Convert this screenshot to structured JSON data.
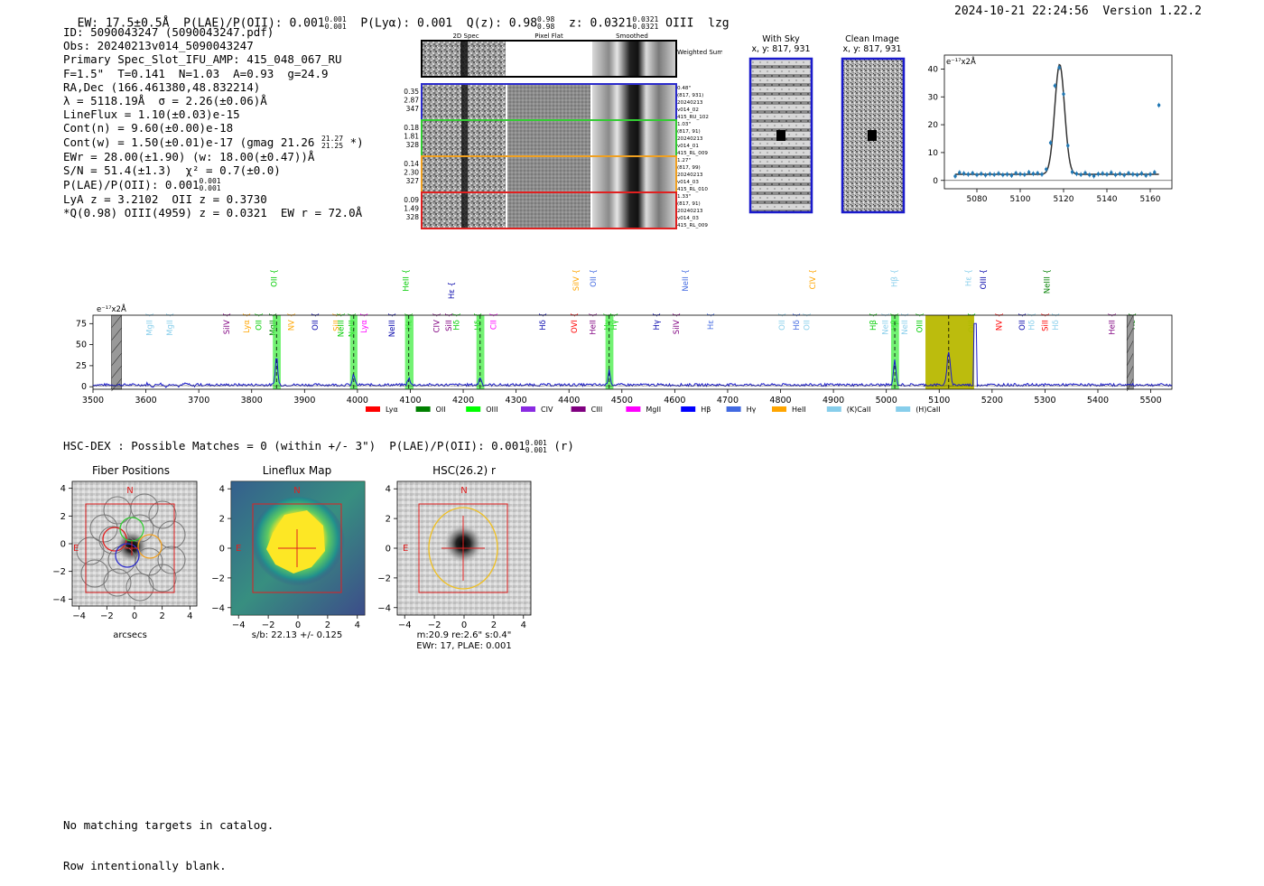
{
  "header": {
    "ew": "EW: 17.5±0.5Å",
    "plae_label": "P(LAE)/P(OII): 0.001",
    "plae_hi": "0.001",
    "plae_lo": "0.001",
    "plya": "P(Lyα): 0.001",
    "qz_label": "Q(z): 0.98",
    "qz_hi": "0.98",
    "qz_lo": "0.98",
    "z_label": "z: 0.0321",
    "z_hi": "0.0321",
    "z_lo": "0.0321",
    "line_name": "OIII",
    "flag": "lzg",
    "timestamp": "2024-10-21 22:24:56",
    "version": "Version 1.22.2"
  },
  "info": {
    "id": "ID: 5090043247 (5090043247.pdf)",
    "obs": "Obs: 20240213v014_5090043247",
    "primary": "Primary Spec_Slot_IFU_AMP: 415_048_067_RU",
    "fiber": "F=1.5\"  T=0.141  N=1.03  A=0.93  g=24.9",
    "radec": "RA,Dec (166.461380,48.832214)",
    "lambda": "λ = 5118.19Å  σ = 2.26(±0.06)Å",
    "lineflux": "LineFlux = 1.10(±0.03)e-15",
    "contn": "Cont(n) = 9.60(±0.00)e-18",
    "contw": "Cont(w) = 1.50(±0.01)e-17 (gmag 21.26",
    "contw_hi": "21.27",
    "contw_lo": "21.25",
    "contw_end": "*)",
    "ewr": "EWr = 28.00(±1.90) (w: 18.00(±0.47))Å",
    "sn": "S/N = 51.4(±1.3)  χ² = 0.7(±0.0)",
    "plae": "P(LAE)/P(OII): 0.001",
    "plae_hi": "0.001",
    "plae_lo": "0.001",
    "lya": "LyA z = 3.2102  OII z = 0.3730",
    "q": "*Q(0.98) OIII(4959) z = 0.0321  EW r = 72.0Å"
  },
  "cutouts": {
    "col_titles": [
      "2D Spec",
      "Pixel Flat",
      "Smoothed"
    ],
    "weighted_sum": "Weighted Sum",
    "rows": [
      {
        "nums": [
          "0.35",
          "2.87",
          "347"
        ],
        "meta": [
          "0.48\"",
          "(817, 931)",
          "20240213",
          "v014_02",
          "415_RU_102"
        ],
        "color": "#2b2bcc"
      },
      {
        "nums": [
          "0.18",
          "1.81",
          "328"
        ],
        "meta": [
          "1.03\"",
          "(817, 91)",
          "20240213",
          "v014_01",
          "415_RL_009"
        ],
        "color": "#33cc33"
      },
      {
        "nums": [
          "0.14",
          "2.30",
          "327"
        ],
        "meta": [
          "1.27\"",
          "(817, 99)",
          "20240213",
          "v014_03",
          "415_RL_010"
        ],
        "color": "#f0a020"
      },
      {
        "nums": [
          "0.09",
          "1.49",
          "328"
        ],
        "meta": [
          "1.33\"",
          "(817, 91)",
          "20240213",
          "v014_03",
          "415_RL_009"
        ],
        "color": "#e02020"
      }
    ],
    "with_sky_title": "With Sky",
    "with_sky_xy": "x, y: 817, 931",
    "clean_title": "Clean Image",
    "clean_xy": "x, y: 817, 931"
  },
  "line_fit_chart": {
    "ylabel": "e⁻¹⁷x2Å",
    "x_ticks": [
      "5080",
      "5100",
      "5120",
      "5140",
      "5160"
    ],
    "y_ticks": [
      "0",
      "10",
      "20",
      "30",
      "40"
    ]
  },
  "spectrum": {
    "ylabel": "e⁻¹⁷x2Å",
    "x_ticks": [
      "3500",
      "3600",
      "3700",
      "3800",
      "3900",
      "4000",
      "4100",
      "4200",
      "4300",
      "4400",
      "4500",
      "4600",
      "4700",
      "4800",
      "4900",
      "5000",
      "5100",
      "5200",
      "5300",
      "5400",
      "5500"
    ],
    "y_ticks": [
      "0",
      "25",
      "50",
      "75"
    ],
    "legend": [
      {
        "name": "Lyα",
        "color": "#ff0000"
      },
      {
        "name": "OII",
        "color": "#008000"
      },
      {
        "name": "OIII",
        "color": "#00ff00"
      },
      {
        "name": "CIV",
        "color": "#8a2be2"
      },
      {
        "name": "CIII",
        "color": "#800080"
      },
      {
        "name": "MgII",
        "color": "#ff00ff"
      },
      {
        "name": "Hβ",
        "color": "#0000ff"
      },
      {
        "name": "Hγ",
        "color": "#4169e1"
      },
      {
        "name": "HeII",
        "color": "#ffa500"
      },
      {
        "name": "(K)CaII",
        "color": "#87ceeb"
      },
      {
        "name": "(H)CaII",
        "color": "#87ceeb"
      }
    ]
  },
  "hsc": {
    "title": "HSC-DEX : Possible Matches = 0 (within +/- 3\")  P(LAE)/P(OII): 0.001",
    "hi": "0.001",
    "lo": "0.001",
    "band": "(r)",
    "panel1_title": "Fiber Positions",
    "panel1_xlabel": "arcsecs",
    "panel2_title": "Lineflux Map",
    "panel2_xlabel": "s/b: 22.13 +/- 0.125",
    "panel3_title": "HSC(26.2) r",
    "panel3_xlabel1": "m:20.9  re:2.6\"  s:0.4\"",
    "panel3_xlabel2": "EWr: 17, PLAE: 0.001",
    "compass_n": "N",
    "compass_e": "E",
    "ticks": [
      "−4",
      "−2",
      "0",
      "2",
      "4"
    ]
  },
  "footer": {
    "line1": "No matching targets in catalog.",
    "line2": "Row intentionally blank."
  },
  "chart_data": [
    {
      "type": "scatter",
      "title": "Line fit",
      "xlabel": "",
      "ylabel": "e⁻¹⁷x2Å",
      "xlim": [
        5065,
        5170
      ],
      "ylim": [
        -3,
        45
      ],
      "x": [
        5070,
        5072,
        5074,
        5076,
        5078,
        5080,
        5082,
        5084,
        5086,
        5088,
        5090,
        5092,
        5094,
        5096,
        5098,
        5100,
        5102,
        5104,
        5106,
        5108,
        5110,
        5112,
        5114,
        5116,
        5118,
        5120,
        5122,
        5124,
        5126,
        5128,
        5130,
        5132,
        5134,
        5136,
        5138,
        5140,
        5142,
        5144,
        5146,
        5148,
        5150,
        5152,
        5154,
        5156,
        5158,
        5160,
        5162,
        5164
      ],
      "y": [
        1.5,
        2.8,
        2.5,
        2.2,
        2.6,
        2.0,
        2.4,
        1.9,
        2.3,
        2.1,
        2.5,
        2.0,
        2.2,
        1.8,
        2.6,
        2.3,
        2.1,
        2.9,
        2.4,
        2.6,
        2.2,
        4.0,
        13.5,
        34.0,
        40.5,
        31.0,
        12.5,
        3.0,
        2.4,
        2.1,
        2.7,
        2.0,
        1.6,
        2.3,
        2.5,
        2.2,
        2.8,
        2.0,
        2.4,
        1.9,
        2.6,
        2.2,
        2.0,
        2.5,
        1.8,
        2.2,
        2.9,
        27.0
      ],
      "fit_center": 5118.19,
      "fit_sigma": 2.26,
      "fit_amp": 39.5,
      "fit_cont": 2.2
    },
    {
      "type": "line",
      "title": "Full spectrum",
      "xlabel": "",
      "ylabel": "e⁻¹⁷x2Å",
      "xlim": [
        3500,
        5540
      ],
      "ylim": [
        -3,
        85
      ],
      "emission_peaks": [
        {
          "x": 3847,
          "height": 34
        },
        {
          "x": 3993,
          "height": 12
        },
        {
          "x": 4097,
          "height": 8
        },
        {
          "x": 4232,
          "height": 9
        },
        {
          "x": 4476,
          "height": 17
        },
        {
          "x": 5016,
          "height": 30
        },
        {
          "x": 5118,
          "height": 40
        }
      ],
      "highlight_bands": [
        {
          "x0": 3840,
          "x1": 3855,
          "color": "#44ee44"
        },
        {
          "x0": 3986,
          "x1": 4000,
          "color": "#44ee44"
        },
        {
          "x0": 4090,
          "x1": 4106,
          "color": "#44ee44"
        },
        {
          "x0": 4225,
          "x1": 4240,
          "color": "#44ee44"
        },
        {
          "x0": 4469,
          "x1": 4484,
          "color": "#44ee44"
        },
        {
          "x0": 5009,
          "x1": 5024,
          "color": "#44ee44"
        },
        {
          "x0": 5074,
          "x1": 5166,
          "color": "#b8b800"
        }
      ],
      "masked_bands": [
        {
          "x0": 3535,
          "x1": 3554
        },
        {
          "x0": 5455,
          "x1": 5467
        }
      ],
      "line_labels": [
        {
          "name": "MgII",
          "x": 3612,
          "row": 2,
          "color": "#87ceeb"
        },
        {
          "name": "MgII",
          "x": 3650,
          "row": 2,
          "color": "#87ceeb"
        },
        {
          "name": "SiIV",
          "x": 3758,
          "row": 2,
          "color": "#800080"
        },
        {
          "name": "Lyα",
          "x": 3795,
          "row": 2,
          "color": "#ffa500"
        },
        {
          "name": "OII",
          "x": 3818,
          "row": 2,
          "color": "#00cc00"
        },
        {
          "name": "MgII",
          "x": 3845,
          "row": 2,
          "color": "#008000"
        },
        {
          "name": "OII",
          "x": 3847,
          "row": 0,
          "color": "#00cc00"
        },
        {
          "name": "NV",
          "x": 3880,
          "row": 2,
          "color": "#ffa500"
        },
        {
          "name": "OII",
          "x": 3925,
          "row": 2,
          "color": "#0000aa"
        },
        {
          "name": "SiII",
          "x": 3965,
          "row": 2,
          "color": "#ffa500"
        },
        {
          "name": "NeIII",
          "x": 3974,
          "row": 2,
          "color": "#00cc00"
        },
        {
          "name": "NeIII",
          "x": 3994,
          "row": 2,
          "color": "#00cc00"
        },
        {
          "name": "Lyα",
          "x": 4017,
          "row": 2,
          "color": "#ff00ff"
        },
        {
          "name": "NeIII",
          "x": 4070,
          "row": 2,
          "color": "#0000aa"
        },
        {
          "name": "Hε",
          "x": 4102,
          "row": 2,
          "color": "#00cc00"
        },
        {
          "name": "HeII",
          "x": 4097,
          "row": 0,
          "color": "#00cc00"
        },
        {
          "name": "Hε",
          "x": 4183,
          "row": 1,
          "color": "#0000aa"
        },
        {
          "name": "CIV",
          "x": 4155,
          "row": 2,
          "color": "#800080"
        },
        {
          "name": "SiII",
          "x": 4178,
          "row": 2,
          "color": "#800080"
        },
        {
          "name": "Hδ",
          "x": 4192,
          "row": 2,
          "color": "#00cc00"
        },
        {
          "name": "Hδ",
          "x": 4232,
          "row": 2,
          "color": "#00cc00"
        },
        {
          "name": "CII",
          "x": 4262,
          "row": 2,
          "color": "#ff00ff"
        },
        {
          "name": "Hδ",
          "x": 4355,
          "row": 2,
          "color": "#0000aa"
        },
        {
          "name": "OVI",
          "x": 4415,
          "row": 2,
          "color": "#ff0000"
        },
        {
          "name": "SiIV",
          "x": 4418,
          "row": 0,
          "color": "#ffa500"
        },
        {
          "name": "OII",
          "x": 4451,
          "row": 0,
          "color": "#4169e1"
        },
        {
          "name": "HeII",
          "x": 4450,
          "row": 2,
          "color": "#800080"
        },
        {
          "name": "Hγ",
          "x": 4490,
          "row": 2,
          "color": "#00cc00"
        },
        {
          "name": "Hγ",
          "x": 4477,
          "row": 2,
          "color": "#00cc00"
        },
        {
          "name": "NeII",
          "x": 4625,
          "row": 0,
          "color": "#4169e1"
        },
        {
          "name": "Hγ",
          "x": 4570,
          "row": 2,
          "color": "#0000aa"
        },
        {
          "name": "SiIV",
          "x": 4608,
          "row": 2,
          "color": "#800080"
        },
        {
          "name": "Hε",
          "x": 4673,
          "row": 2,
          "color": "#4169e1"
        },
        {
          "name": "OII",
          "x": 4808,
          "row": 2,
          "color": "#87ceeb"
        },
        {
          "name": "Hδ",
          "x": 4835,
          "row": 2,
          "color": "#4169e1"
        },
        {
          "name": "OII",
          "x": 4855,
          "row": 2,
          "color": "#87ceeb"
        },
        {
          "name": "CIV",
          "x": 4866,
          "row": 0,
          "color": "#ffa500"
        },
        {
          "name": "Hβ",
          "x": 4980,
          "row": 2,
          "color": "#00cc00"
        },
        {
          "name": "NeII",
          "x": 5003,
          "row": 2,
          "color": "#87ceeb"
        },
        {
          "name": "Hβ",
          "x": 5020,
          "row": 2,
          "color": "#00cc00"
        },
        {
          "name": "Hβ",
          "x": 5020,
          "row": 0,
          "color": "#87ceeb"
        },
        {
          "name": "NeII",
          "x": 5040,
          "row": 2,
          "color": "#87ceeb"
        },
        {
          "name": "OIII",
          "x": 5068,
          "row": 2,
          "color": "#00cc00"
        },
        {
          "name": "Hε",
          "x": 5160,
          "row": 0,
          "color": "#87ceeb"
        },
        {
          "name": "OIII",
          "x": 5166,
          "row": 2,
          "color": "#00cc00"
        },
        {
          "name": "OIII",
          "x": 5188,
          "row": 0,
          "color": "#0000aa"
        },
        {
          "name": "NV",
          "x": 5218,
          "row": 2,
          "color": "#ff0000"
        },
        {
          "name": "OII",
          "x": 5262,
          "row": 2,
          "color": "#0000aa"
        },
        {
          "name": "Hδ",
          "x": 5280,
          "row": 2,
          "color": "#87ceeb"
        },
        {
          "name": "SiII",
          "x": 5305,
          "row": 2,
          "color": "#ff0000"
        },
        {
          "name": "NeIII",
          "x": 5309,
          "row": 0,
          "color": "#008000"
        },
        {
          "name": "Hδ",
          "x": 5325,
          "row": 2,
          "color": "#87ceeb"
        },
        {
          "name": "HeII",
          "x": 5432,
          "row": 2,
          "color": "#800080"
        },
        {
          "name": "Hε",
          "x": 5470,
          "row": 2,
          "color": "#008000"
        }
      ]
    }
  ]
}
